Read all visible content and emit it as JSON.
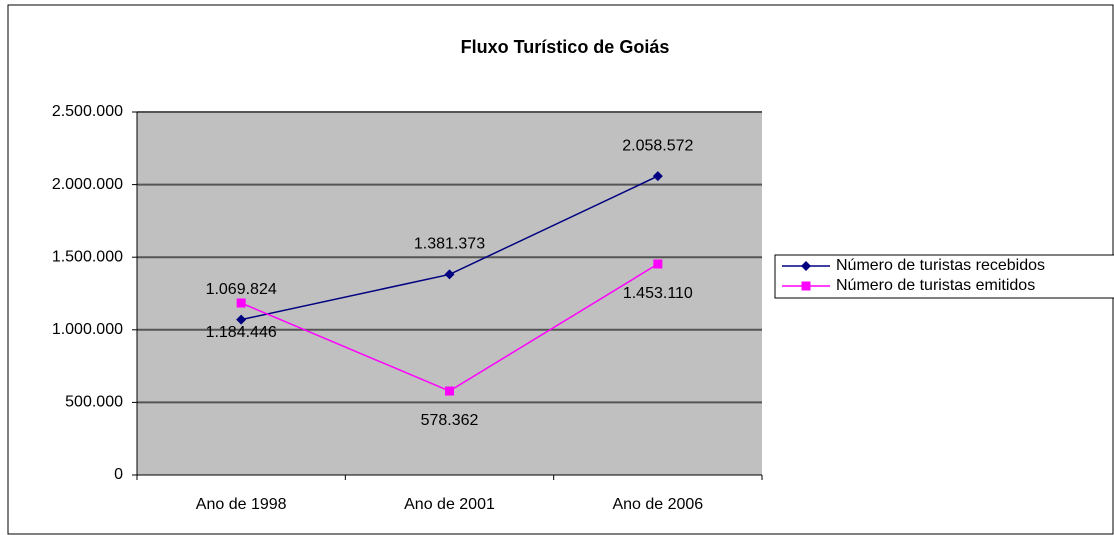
{
  "chart_data": {
    "type": "line",
    "title": "Fluxo Turístico de Goiás",
    "categories": [
      "Ano de 1998",
      "Ano de 2001",
      "Ano de 2006"
    ],
    "series": [
      {
        "name": "Número de turistas recebidos",
        "color": "#000080",
        "marker": "diamond",
        "values": [
          1069824,
          1381373,
          2058572
        ],
        "value_labels": [
          "1.069.824",
          "1.381.373",
          "2.058.572"
        ]
      },
      {
        "name": "Número de turistas emitidos",
        "color": "#ff00ff",
        "marker": "square",
        "values": [
          1184446,
          578362,
          1453110
        ],
        "value_labels": [
          "1.184.446",
          "578.362",
          "1.453.110"
        ]
      }
    ],
    "ylim": [
      0,
      2500000
    ],
    "yticks": [
      0,
      {
        "value": 500000,
        "label": "500.000"
      },
      {
        "value": 1000000,
        "label": "1.000.000"
      },
      {
        "value": 1500000,
        "label": "1.500.000"
      },
      {
        "value": 2000000,
        "label": "2.000.000"
      },
      {
        "value": 2500000,
        "label": "2.500.000"
      }
    ],
    "grid": true,
    "legend": "right"
  }
}
